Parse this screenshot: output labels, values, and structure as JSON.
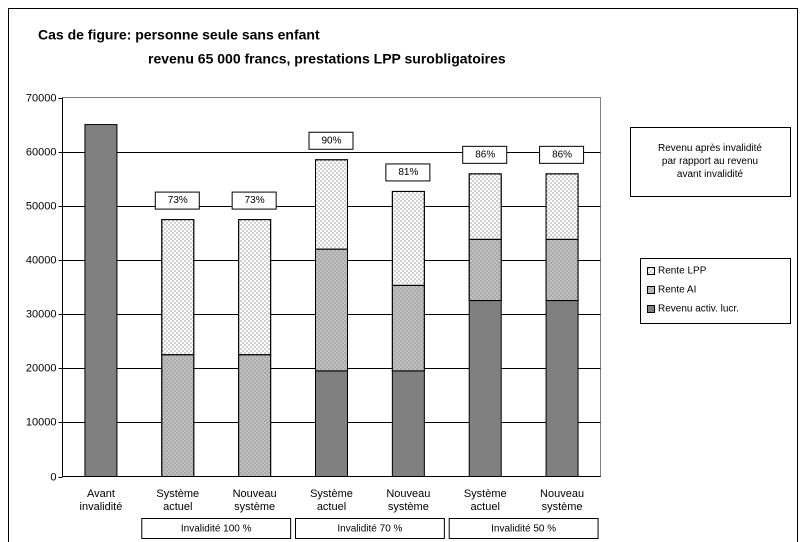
{
  "chart_data": {
    "type": "stacked_bar",
    "title": "Cas de figure: personne seule sans enfant",
    "subtitle": "revenu 65 000 francs, prestations LPP surobligatoires",
    "categories": [
      "Avant\ninvalidité",
      "Système\nactuel",
      "Nouveau\nsystème",
      "Système\nactuel",
      "Nouveau\nsystème",
      "Système\nactuel",
      "Nouveau\nsystème"
    ],
    "groups": [
      {
        "label": "Invalidité 100 %",
        "start": 1,
        "end": 2
      },
      {
        "label": "Invalidité 70 %",
        "start": 3,
        "end": 4
      },
      {
        "label": "Invalidité 50 %",
        "start": 5,
        "end": 6
      }
    ],
    "series": [
      {
        "name": "Rente LPP",
        "color": "#ffffff",
        "values": [
          0,
          24950,
          24950,
          16500,
          17350,
          12100,
          12100
        ]
      },
      {
        "name": "Rente AI",
        "color": "#c0c0c0",
        "values": [
          0,
          22500,
          22500,
          22500,
          15800,
          11300,
          11300
        ]
      },
      {
        "name": "Revenu activ. lucr.",
        "color": "#808080",
        "values": [
          65000,
          0,
          0,
          19500,
          19500,
          32500,
          32500
        ]
      }
    ],
    "ratio_labels": [
      null,
      "73%",
      "73%",
      "90%",
      "81%",
      "86%",
      "86%"
    ],
    "ratio_note": "Revenu après invalidité\npar rapport au revenu\navant invalidité",
    "ylim": [
      0,
      70000
    ],
    "yticks": [
      0,
      10000,
      20000,
      30000,
      40000,
      50000,
      60000,
      70000
    ],
    "grid": true
  }
}
